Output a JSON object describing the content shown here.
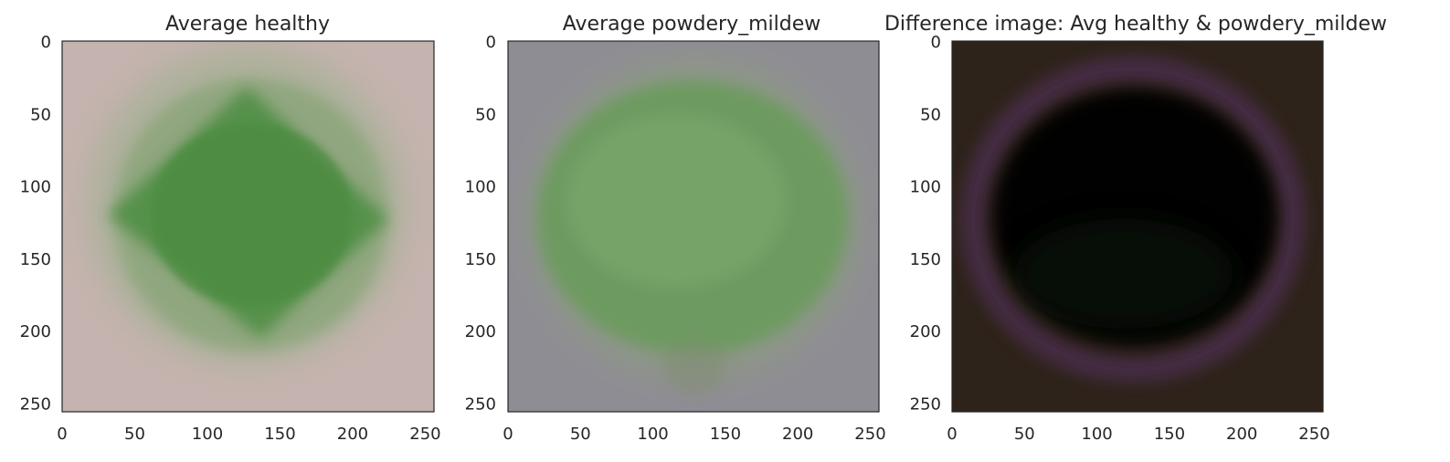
{
  "chart_data": [
    {
      "type": "heatmap",
      "title": "Average healthy",
      "xlim": [
        0,
        256
      ],
      "ylim": [
        256,
        0
      ],
      "xticks": [
        "0",
        "50",
        "100",
        "150",
        "200",
        "250"
      ],
      "yticks": [
        "0",
        "50",
        "100",
        "150",
        "200",
        "250"
      ],
      "background_color": "#c4b3ae",
      "leaf_color": "#4e8f44",
      "leaf_shape": "diamond"
    },
    {
      "type": "heatmap",
      "title": "Average powdery_mildew",
      "xlim": [
        0,
        256
      ],
      "ylim": [
        256,
        0
      ],
      "xticks": [
        "0",
        "50",
        "100",
        "150",
        "200",
        "250"
      ],
      "yticks": [
        "0",
        "50",
        "100",
        "150",
        "200",
        "250"
      ],
      "background_color": "#8e8c93",
      "leaf_color": "#6c9d5e",
      "leaf_shape": "oval"
    },
    {
      "type": "heatmap",
      "title": "Difference image: Avg healthy & powdery_mildew",
      "xlim": [
        0,
        256
      ],
      "ylim": [
        256,
        0
      ],
      "xticks": [
        "0",
        "50",
        "100",
        "150",
        "200",
        "250"
      ],
      "yticks": [
        "0",
        "50",
        "100",
        "150",
        "200",
        "250"
      ],
      "background_color": "#2e2219",
      "leaf_color": "#030304",
      "ring_color": "#4a2d4c",
      "leaf_shape": "oval"
    }
  ]
}
